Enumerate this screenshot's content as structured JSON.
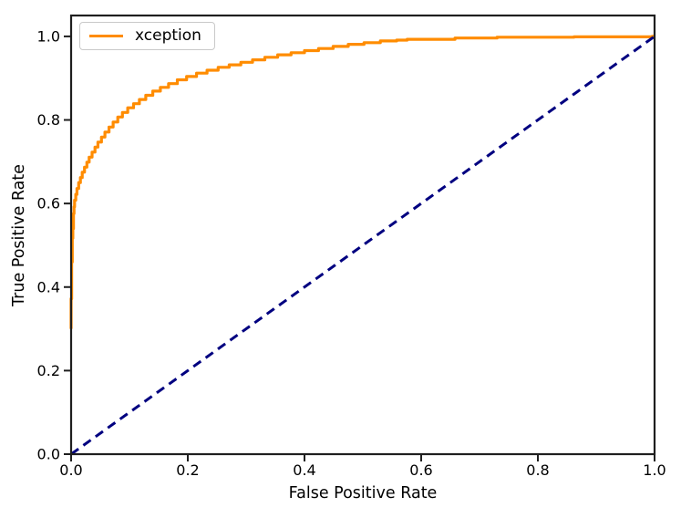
{
  "chart_data": {
    "type": "line",
    "title": "",
    "xlabel": "False Positive Rate",
    "ylabel": "True Positive Rate",
    "xlim": [
      0.0,
      1.0
    ],
    "ylim": [
      0.0,
      1.05
    ],
    "grid": false,
    "x_tick_values": [
      0.0,
      0.2,
      0.4,
      0.6,
      0.8,
      1.0
    ],
    "x_tick_labels": [
      "0.0",
      "0.2",
      "0.4",
      "0.6",
      "0.8",
      "1.0"
    ],
    "y_tick_values": [
      0.0,
      0.2,
      0.4,
      0.6,
      0.8,
      1.0
    ],
    "y_tick_labels": [
      "0.0",
      "0.2",
      "0.4",
      "0.6",
      "0.8",
      "1.0"
    ],
    "legend": {
      "position": "upper-left",
      "entries": [
        {
          "label": "xception",
          "color": "#ff8c00"
        }
      ]
    },
    "colors": {
      "roc_curve": "#ff8c00",
      "chance_line": "#000080",
      "axis": "#1f1f1f",
      "background": "#ffffff",
      "legend_border": "#c9c9c9"
    },
    "series": [
      {
        "name": "xception",
        "color": "#ff8c00",
        "line_style": "solid",
        "line_width": 3.2,
        "interpolation": "step",
        "points": [
          [
            0.0,
            0.3
          ],
          [
            0.001,
            0.372
          ],
          [
            0.001,
            0.42
          ],
          [
            0.002,
            0.46
          ],
          [
            0.002,
            0.492
          ],
          [
            0.003,
            0.517
          ],
          [
            0.004,
            0.54
          ],
          [
            0.004,
            0.558
          ],
          [
            0.005,
            0.576
          ],
          [
            0.006,
            0.592
          ],
          [
            0.008,
            0.608
          ],
          [
            0.01,
            0.622
          ],
          [
            0.013,
            0.636
          ],
          [
            0.016,
            0.65
          ],
          [
            0.019,
            0.662
          ],
          [
            0.023,
            0.675
          ],
          [
            0.027,
            0.687
          ],
          [
            0.031,
            0.699
          ],
          [
            0.036,
            0.711
          ],
          [
            0.041,
            0.723
          ],
          [
            0.046,
            0.735
          ],
          [
            0.052,
            0.747
          ],
          [
            0.058,
            0.759
          ],
          [
            0.065,
            0.771
          ],
          [
            0.072,
            0.783
          ],
          [
            0.08,
            0.795
          ],
          [
            0.088,
            0.807
          ],
          [
            0.097,
            0.818
          ],
          [
            0.107,
            0.829
          ],
          [
            0.117,
            0.839
          ],
          [
            0.128,
            0.849
          ],
          [
            0.14,
            0.859
          ],
          [
            0.153,
            0.869
          ],
          [
            0.167,
            0.878
          ],
          [
            0.182,
            0.887
          ],
          [
            0.198,
            0.896
          ],
          [
            0.215,
            0.904
          ],
          [
            0.233,
            0.912
          ],
          [
            0.252,
            0.919
          ],
          [
            0.271,
            0.926
          ],
          [
            0.291,
            0.932
          ],
          [
            0.311,
            0.938
          ],
          [
            0.332,
            0.944
          ],
          [
            0.354,
            0.95
          ],
          [
            0.377,
            0.956
          ],
          [
            0.4,
            0.961
          ],
          [
            0.424,
            0.966
          ],
          [
            0.449,
            0.971
          ],
          [
            0.475,
            0.976
          ],
          [
            0.502,
            0.981
          ],
          [
            0.53,
            0.985
          ],
          [
            0.558,
            0.989
          ],
          [
            0.576,
            0.991
          ],
          [
            0.591,
            0.993
          ],
          [
            0.658,
            0.993
          ],
          [
            0.663,
            0.996
          ],
          [
            0.73,
            0.996
          ],
          [
            0.736,
            0.998
          ],
          [
            0.862,
            0.998
          ],
          [
            0.867,
            0.999
          ],
          [
            0.996,
            0.999
          ],
          [
            1.0,
            1.0
          ]
        ]
      },
      {
        "name": "chance-diagonal",
        "color": "#000080",
        "line_style": "dashed",
        "line_width": 3,
        "interpolation": "linear",
        "points": [
          [
            0.0,
            0.0
          ],
          [
            1.0,
            1.0
          ]
        ]
      }
    ]
  }
}
